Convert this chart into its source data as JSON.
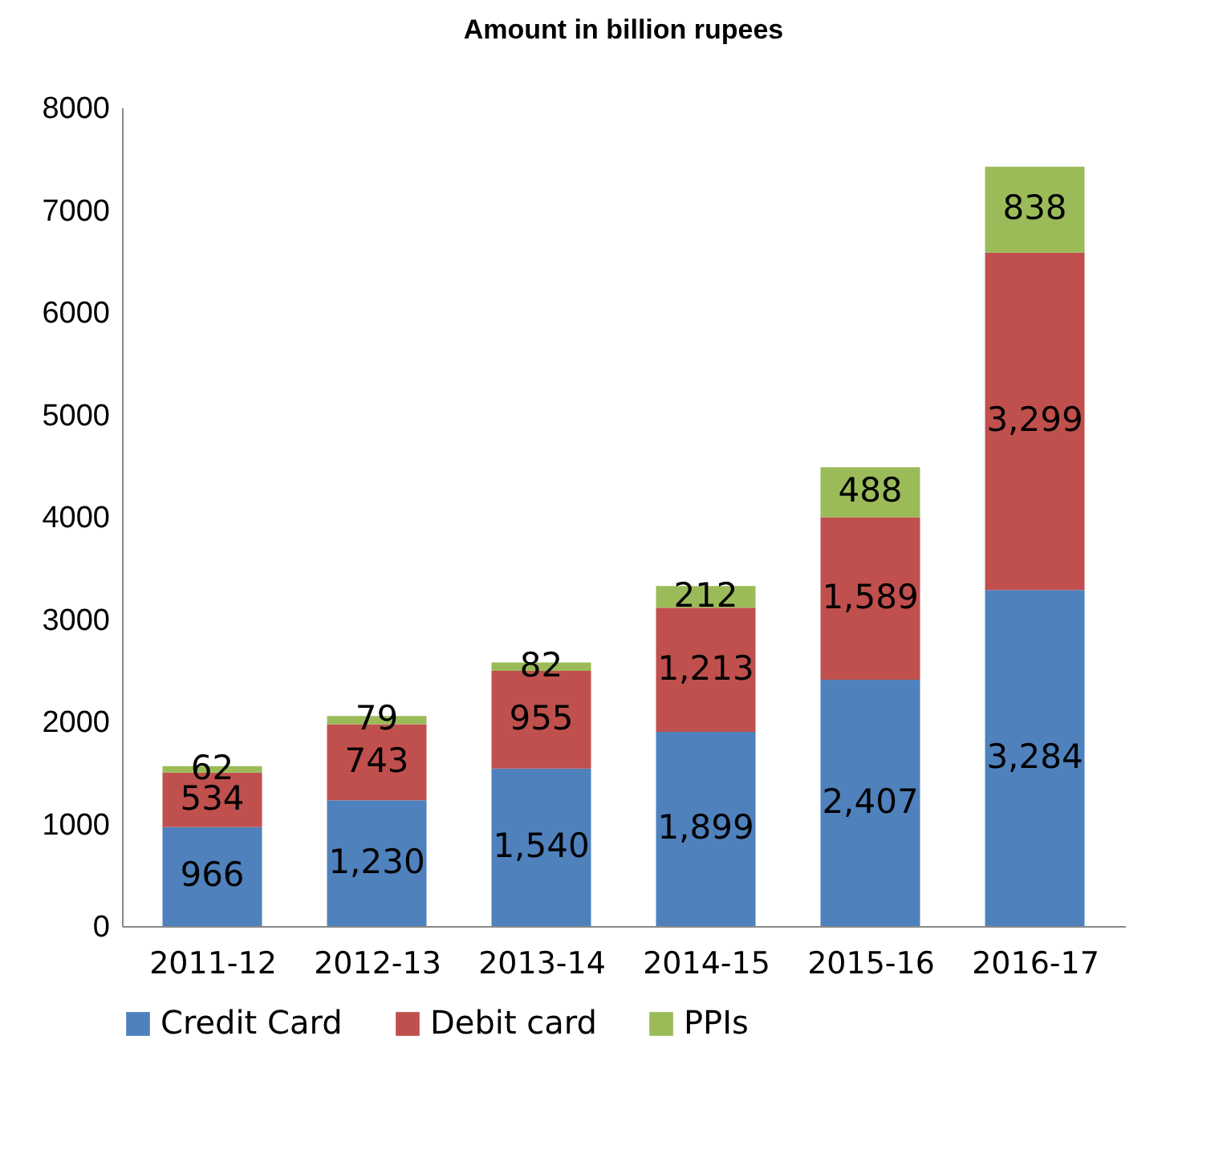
{
  "chart_data": {
    "type": "bar",
    "title": "Amount in billion rupees",
    "stacked": true,
    "categories": [
      "2011-12",
      "2012-13",
      "2013-14",
      "2014-15",
      "2015-16",
      "2016-17"
    ],
    "series": [
      {
        "name": "Credit Card",
        "color": "#4f81bd",
        "values": [
          966,
          1230,
          1540,
          1899,
          2407,
          3284
        ],
        "value_labels": [
          "966",
          "1,230",
          "1,540",
          "1,899",
          "2,407",
          "3,284"
        ]
      },
      {
        "name": "Debit card",
        "color": "#c0504d",
        "values": [
          534,
          743,
          955,
          1213,
          1589,
          3299
        ],
        "value_labels": [
          "534",
          "743",
          "955",
          "1,213",
          "1,589",
          "3,299"
        ]
      },
      {
        "name": "PPIs",
        "color": "#9bbb59",
        "values": [
          62,
          79,
          82,
          212,
          488,
          838
        ],
        "value_labels": [
          "62",
          "79",
          "82",
          "212",
          "488",
          "838"
        ]
      }
    ],
    "ylim": [
      0,
      8000
    ],
    "yticks": [
      0,
      1000,
      2000,
      3000,
      4000,
      5000,
      6000,
      7000,
      8000
    ],
    "grid": false,
    "legend": "bottom"
  }
}
